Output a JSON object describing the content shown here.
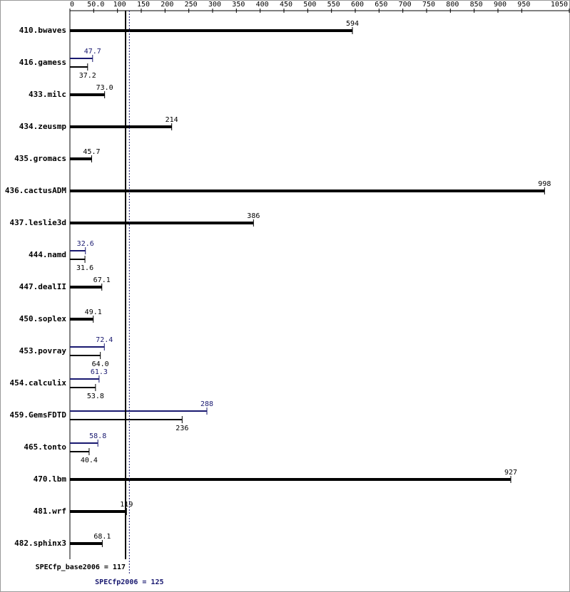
{
  "chart_data": {
    "type": "bar",
    "categories": [
      "410.bwaves",
      "416.gamess",
      "433.milc",
      "434.zeusmp",
      "435.gromacs",
      "436.cactusADM",
      "437.leslie3d",
      "444.namd",
      "447.dealII",
      "450.soplex",
      "453.povray",
      "454.calculix",
      "459.GemsFDTD",
      "465.tonto",
      "470.lbm",
      "481.wrf",
      "482.sphinx3"
    ],
    "series": [
      {
        "color": "#000000",
        "values": [
          594,
          37.2,
          73,
          214,
          45.7,
          998,
          386,
          31.6,
          67.1,
          49.1,
          64,
          53.8,
          236,
          40.4,
          927,
          119,
          68.1
        ],
        "value_labels": [
          "594",
          "37.2",
          "73.0",
          "214",
          "45.7",
          "998",
          "386",
          "31.6",
          "67.1",
          "49.1",
          "64.0",
          "53.8",
          "236",
          "40.4",
          "927",
          "119",
          "68.1"
        ]
      },
      {
        "color": "#191970",
        "values": [
          null,
          47.7,
          null,
          null,
          null,
          null,
          null,
          32.6,
          null,
          null,
          72.4,
          61.3,
          288,
          58.8,
          null,
          null,
          null
        ],
        "value_labels": [
          null,
          "47.7",
          null,
          null,
          null,
          null,
          null,
          "32.6",
          null,
          null,
          "72.4",
          "61.3",
          "288",
          "58.8",
          null,
          null,
          null
        ]
      }
    ],
    "xlim": [
      0,
      1050
    ],
    "xticks": [
      0,
      {
        "value": 50,
        "label": "50.0"
      },
      100,
      150,
      200,
      250,
      300,
      350,
      400,
      450,
      500,
      550,
      600,
      650,
      700,
      750,
      800,
      850,
      900,
      950,
      1050
    ],
    "reference_lines": [
      {
        "label": "SPECfp_base2006 = 117",
        "value": 117,
        "color": "#000000",
        "dashed": false
      },
      {
        "label": "SPECfp2006 = 125",
        "value": 125,
        "color": "#191970",
        "dashed": true
      }
    ]
  }
}
